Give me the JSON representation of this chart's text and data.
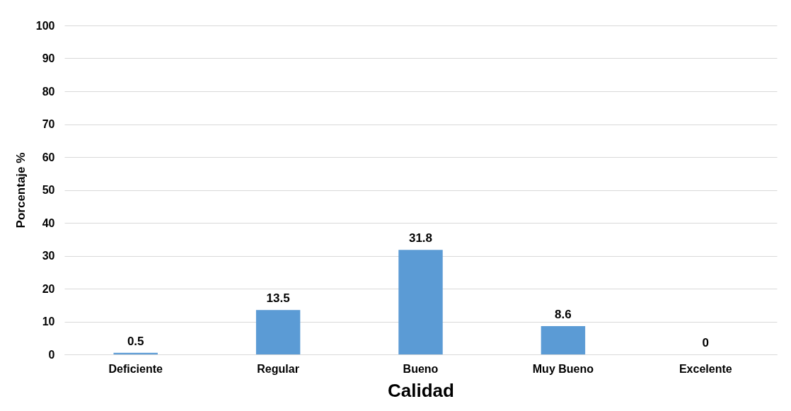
{
  "chart_data": {
    "type": "bar",
    "xlabel": "Calidad",
    "ylabel": "Porcentaje %",
    "categories": [
      "Deficiente",
      "Regular",
      "Bueno",
      "Muy Bueno",
      "Excelente"
    ],
    "values": [
      0.5,
      13.5,
      31.8,
      8.6,
      0
    ],
    "color": "#5b9bd5",
    "ylim": [
      0,
      100
    ],
    "yticks": [
      0,
      10,
      20,
      30,
      40,
      50,
      60,
      70,
      80,
      90,
      100
    ],
    "grid": "y",
    "data_labels": true
  }
}
